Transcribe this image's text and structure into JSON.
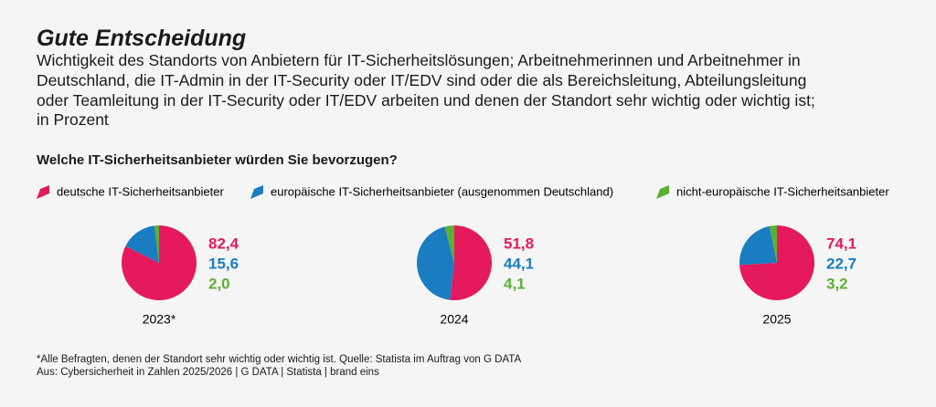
{
  "title": "Gute Entscheidung",
  "subtitle": [
    "Wichtigkeit des Standorts von Anbietern für IT-Sicherheitslösungen; Arbeitnehmerinnen und Arbeitnehmer in",
    "Deutschland, die IT-Admin in der IT-Security oder IT/EDV sind oder die als Bereichsleitung, Abteilungsleitung",
    "oder Teamleitung in der IT-Security oder IT/EDV arbeiten und denen der Standort sehr wichtig oder wichtig ist;",
    "in Prozent"
  ],
  "question": "Welche IT-Sicherheitsanbieter würden Sie bevorzugen?",
  "notes": [
    "*Alle Befragten, denen der Standort sehr wichtig oder wichtig ist. Quelle: Statista im Auftrag von G DATA",
    "Aus: Cybersicherheit in Zahlen 2025/2026 | G DATA | Statista | brand eins"
  ],
  "chart_data": [
    {
      "type": "pie",
      "title": "2023*",
      "categories": [
        "deutsche IT-Sicherheitsanbieter",
        "europäische IT-Sicherheitsanbieter (ausgenommen Deutschland)",
        "nicht-europäische IT-Sicherheitsanbieter"
      ],
      "colors": [
        "#e5195e",
        "#1a7cc1",
        "#5bb031"
      ],
      "values": [
        82.4,
        15.6,
        2.0
      ],
      "value_labels": [
        "82,4",
        "15,6",
        "2,0"
      ]
    },
    {
      "type": "pie",
      "title": "2024",
      "categories": [
        "deutsche IT-Sicherheitsanbieter",
        "europäische IT-Sicherheitsanbieter (ausgenommen Deutschland)",
        "nicht-europäische IT-Sicherheitsanbieter"
      ],
      "colors": [
        "#e5195e",
        "#1a7cc1",
        "#5bb031"
      ],
      "values": [
        51.8,
        44.1,
        4.1
      ],
      "value_labels": [
        "51,8",
        "44,1",
        "4,1"
      ]
    },
    {
      "type": "pie",
      "title": "2025",
      "categories": [
        "deutsche IT-Sicherheitsanbieter",
        "europäische IT-Sicherheitsanbieter (ausgenommen Deutschland)",
        "nicht-europäische IT-Sicherheitsanbieter"
      ],
      "colors": [
        "#e5195e",
        "#1a7cc1",
        "#5bb031"
      ],
      "values": [
        74.1,
        22.7,
        3.2
      ],
      "value_labels": [
        "74,1",
        "22,7",
        "3,2"
      ]
    }
  ]
}
